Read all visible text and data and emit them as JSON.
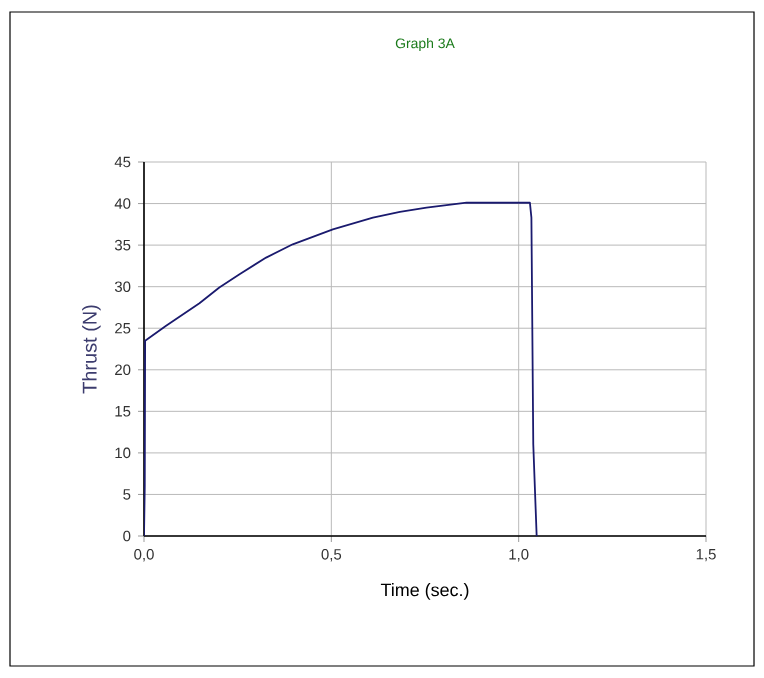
{
  "chart_data": {
    "type": "line",
    "title": "Graph 3A",
    "xlabel": "Time (sec.)",
    "ylabel": "Thrust (N)",
    "x": [
      0,
      0.002,
      0.003,
      0.059,
      0.148,
      0.201,
      0.255,
      0.326,
      0.397,
      0.504,
      0.611,
      0.683,
      0.754,
      0.861,
      1.03,
      1.034,
      1.039,
      1.048
    ],
    "series": [
      {
        "color": "#1a1a6e",
        "values": [
          0,
          6,
          23.5,
          25.3,
          28.0,
          29.9,
          31.5,
          33.5,
          35.1,
          36.9,
          38.3,
          39.0,
          39.5,
          40.1,
          40.1,
          38.3,
          11,
          0
        ]
      }
    ],
    "xlim": [
      0,
      1.5
    ],
    "xticks": [
      {
        "value": 0,
        "label": "0,0"
      },
      {
        "value": 0.5,
        "label": "0,5"
      },
      {
        "value": 1,
        "label": "1,0"
      },
      {
        "value": 1.5,
        "label": "1,5"
      }
    ],
    "ylim": [
      0,
      45
    ],
    "yticks": [
      0,
      5,
      10,
      15,
      20,
      25,
      30,
      35,
      40,
      45
    ],
    "grid": true,
    "marker": "none",
    "line_style": "solid"
  }
}
